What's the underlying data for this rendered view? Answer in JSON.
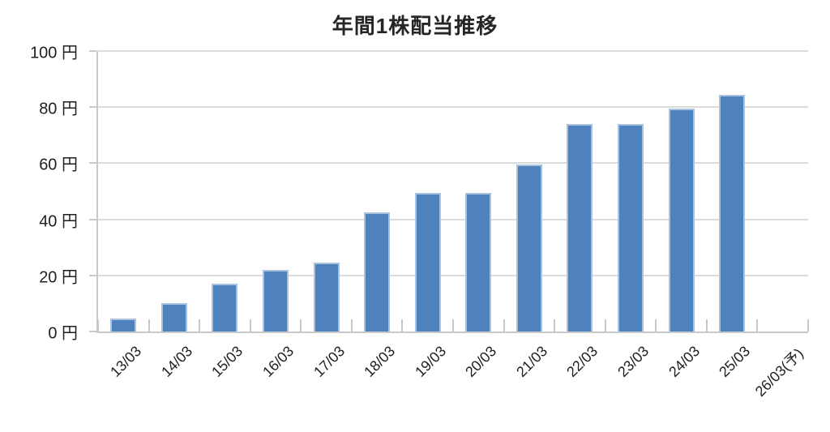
{
  "title": "年間1株配当推移",
  "chart_data": {
    "type": "bar",
    "title": "年間1株配当推移",
    "categories": [
      "13/03",
      "14/03",
      "15/03",
      "16/03",
      "17/03",
      "18/03",
      "19/03",
      "20/03",
      "21/03",
      "22/03",
      "23/03",
      "24/03",
      "25/03",
      "26/03(予)"
    ],
    "values": [
      4.5,
      10,
      17,
      22,
      24.5,
      42.5,
      49.5,
      49.5,
      59.5,
      74,
      74,
      79.5,
      84.5,
      null
    ],
    "value_unit": "円",
    "y_ticks": [
      0,
      20,
      40,
      60,
      80,
      100
    ],
    "y_tick_labels": [
      "0 円",
      "20 円",
      "40 円",
      "60 円",
      "80 円",
      "100 円"
    ],
    "ylim": [
      0,
      100
    ],
    "xlabel": "",
    "ylabel": "",
    "grid": true,
    "legend_position": "none",
    "x_label_rotation_deg": -45,
    "note_last_category_is_forecast": "26/03(予) に棒なし",
    "colors": {
      "bar_fill": "#4F81BD",
      "bar_border": "#A9C2DF",
      "gridline": "#DBDBDB",
      "axis_line": "#C9C9C9",
      "text": "#1F1F1F",
      "title_text": "#262626",
      "background": "#FFFFFF"
    }
  }
}
